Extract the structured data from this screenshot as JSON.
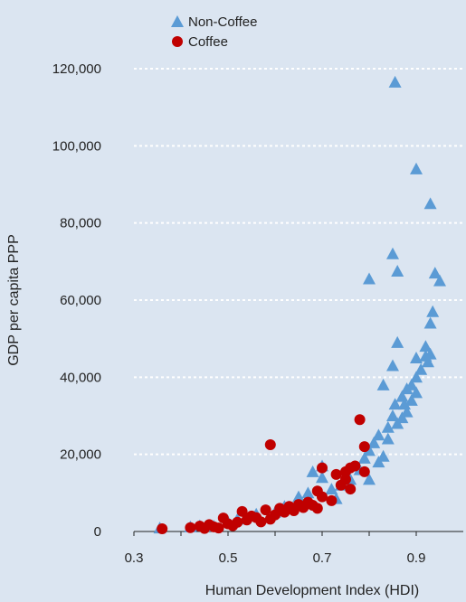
{
  "chart_data": {
    "type": "scatter",
    "xlabel": "Human Development Index (HDI)",
    "ylabel": "GDP per capita PPP",
    "xlim": [
      0.3,
      1.0
    ],
    "ylim": [
      0,
      120000
    ],
    "x_ticks": [
      0.3,
      0.5,
      0.7,
      0.9
    ],
    "x_tick_labels": [
      "0.3",
      "0.5",
      "0.7",
      "0.9"
    ],
    "y_ticks": [
      0,
      20000,
      40000,
      60000,
      80000,
      100000,
      120000
    ],
    "y_tick_labels": [
      "0",
      "20,000",
      "40,000",
      "60,000",
      "80,000",
      "100,000",
      "120,000"
    ],
    "grid": "horizontal dotted",
    "legend_position": "top-left",
    "series": [
      {
        "name": "Non-Coffee",
        "marker": "triangle",
        "color": "#5b9bd5",
        "points": [
          [
            0.355,
            900
          ],
          [
            0.42,
            1200
          ],
          [
            0.44,
            1500
          ],
          [
            0.47,
            1400
          ],
          [
            0.5,
            2500
          ],
          [
            0.52,
            3200
          ],
          [
            0.56,
            4500
          ],
          [
            0.6,
            5000
          ],
          [
            0.62,
            6500
          ],
          [
            0.65,
            9000
          ],
          [
            0.67,
            10000
          ],
          [
            0.68,
            15500
          ],
          [
            0.7,
            17000
          ],
          [
            0.7,
            14000
          ],
          [
            0.72,
            11000
          ],
          [
            0.73,
            8500
          ],
          [
            0.74,
            12000
          ],
          [
            0.76,
            13500
          ],
          [
            0.78,
            16000
          ],
          [
            0.79,
            19000
          ],
          [
            0.8,
            13500
          ],
          [
            0.8,
            21000
          ],
          [
            0.81,
            23000
          ],
          [
            0.82,
            18000
          ],
          [
            0.82,
            25000
          ],
          [
            0.83,
            19500
          ],
          [
            0.83,
            38000
          ],
          [
            0.84,
            24000
          ],
          [
            0.84,
            27000
          ],
          [
            0.85,
            30000
          ],
          [
            0.85,
            43000
          ],
          [
            0.855,
            33000
          ],
          [
            0.86,
            49000
          ],
          [
            0.86,
            28000
          ],
          [
            0.87,
            29500
          ],
          [
            0.87,
            35000
          ],
          [
            0.875,
            33000
          ],
          [
            0.88,
            37000
          ],
          [
            0.88,
            31000
          ],
          [
            0.89,
            34000
          ],
          [
            0.89,
            38000
          ],
          [
            0.9,
            36000
          ],
          [
            0.9,
            40000
          ],
          [
            0.9,
            45000
          ],
          [
            0.91,
            42000
          ],
          [
            0.92,
            45500
          ],
          [
            0.92,
            48000
          ],
          [
            0.925,
            44000
          ],
          [
            0.93,
            46000
          ],
          [
            0.93,
            54000
          ],
          [
            0.935,
            57000
          ],
          [
            0.94,
            67000
          ],
          [
            0.95,
            65000
          ],
          [
            0.8,
            65500
          ],
          [
            0.85,
            72000
          ],
          [
            0.86,
            67500
          ],
          [
            0.93,
            85000
          ],
          [
            0.9,
            94000
          ],
          [
            0.855,
            116500
          ]
        ]
      },
      {
        "name": "Coffee",
        "marker": "circle",
        "color": "#c00000",
        "points": [
          [
            0.36,
            700
          ],
          [
            0.42,
            1000
          ],
          [
            0.44,
            1400
          ],
          [
            0.45,
            800
          ],
          [
            0.46,
            1800
          ],
          [
            0.47,
            1200
          ],
          [
            0.48,
            900
          ],
          [
            0.49,
            3500
          ],
          [
            0.5,
            2000
          ],
          [
            0.51,
            1500
          ],
          [
            0.52,
            2400
          ],
          [
            0.53,
            5200
          ],
          [
            0.54,
            3000
          ],
          [
            0.55,
            4000
          ],
          [
            0.56,
            3600
          ],
          [
            0.57,
            2500
          ],
          [
            0.58,
            5600
          ],
          [
            0.59,
            3200
          ],
          [
            0.59,
            22500
          ],
          [
            0.6,
            4300
          ],
          [
            0.61,
            6000
          ],
          [
            0.62,
            5000
          ],
          [
            0.63,
            6500
          ],
          [
            0.64,
            5400
          ],
          [
            0.65,
            7000
          ],
          [
            0.66,
            6200
          ],
          [
            0.67,
            7600
          ],
          [
            0.68,
            6800
          ],
          [
            0.69,
            6000
          ],
          [
            0.69,
            10500
          ],
          [
            0.7,
            9000
          ],
          [
            0.7,
            16500
          ],
          [
            0.72,
            8000
          ],
          [
            0.73,
            14800
          ],
          [
            0.74,
            12000
          ],
          [
            0.75,
            13500
          ],
          [
            0.75,
            15500
          ],
          [
            0.76,
            16500
          ],
          [
            0.76,
            11000
          ],
          [
            0.77,
            17000
          ],
          [
            0.78,
            29000
          ],
          [
            0.79,
            22000
          ],
          [
            0.79,
            15500
          ]
        ]
      }
    ]
  }
}
